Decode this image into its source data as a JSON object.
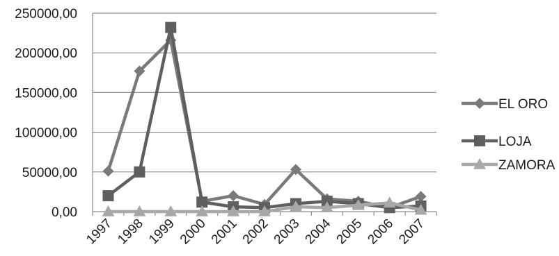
{
  "chart_data": {
    "type": "line",
    "categories": [
      "1997",
      "1998",
      "1999",
      "2000",
      "2001",
      "2002",
      "2003",
      "2004",
      "2005",
      "2006",
      "2007"
    ],
    "y_ticks": [
      "0,00",
      "50000,00",
      "100000,00",
      "150000,00",
      "200000,00",
      "250000,00"
    ],
    "ylim": [
      0,
      250000
    ],
    "grid": true,
    "legend_position": "right",
    "title": "",
    "xlabel": "",
    "ylabel": "",
    "series": [
      {
        "name": "EL ORO",
        "marker": "diamond",
        "color": "#7a7a7a",
        "values": [
          51000,
          177000,
          216000,
          13000,
          20000,
          9000,
          53000,
          16000,
          13000,
          5000,
          19000
        ]
      },
      {
        "name": "LOJA",
        "marker": "square",
        "color": "#5f5f5f",
        "values": [
          20000,
          50000,
          232000,
          12000,
          6000,
          5000,
          10000,
          13000,
          10000,
          5000,
          7000
        ]
      },
      {
        "name": "ZAMORA",
        "marker": "triangle",
        "color": "#a8a8a8",
        "values": [
          0,
          0,
          0,
          0,
          0,
          0,
          6000,
          5000,
          8000,
          11000,
          2000
        ]
      }
    ]
  }
}
